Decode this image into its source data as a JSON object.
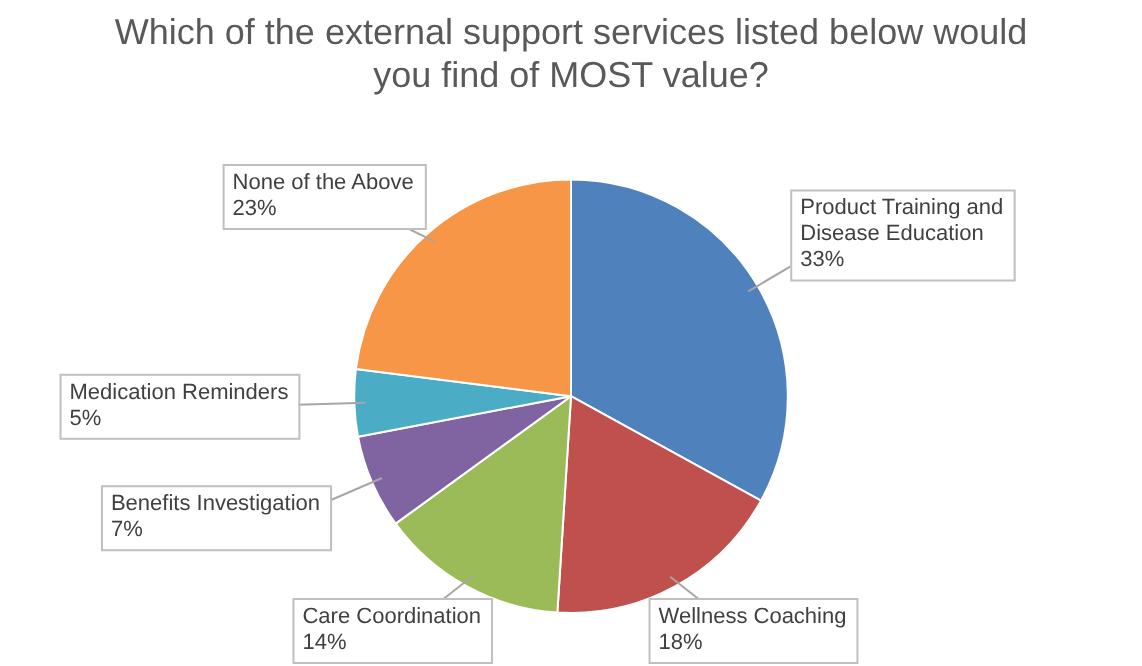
{
  "chart_data": {
    "type": "pie",
    "title": "Which of the external support services listed below would you find of MOST value?",
    "categories": [
      "Product Training and Disease Education",
      "Wellness Coaching",
      "Care Coordination",
      "Benefits Investigation",
      "Medication Reminders",
      "None of the Above"
    ],
    "values": [
      33,
      18,
      14,
      7,
      5,
      23
    ],
    "value_labels": [
      "33%",
      "18%",
      "14%",
      "7%",
      "5%",
      "23%"
    ],
    "colors": [
      "#4f81bd",
      "#c0504d",
      "#9bbb59",
      "#8064a2",
      "#4bacc6",
      "#f79646"
    ],
    "legend": false
  }
}
